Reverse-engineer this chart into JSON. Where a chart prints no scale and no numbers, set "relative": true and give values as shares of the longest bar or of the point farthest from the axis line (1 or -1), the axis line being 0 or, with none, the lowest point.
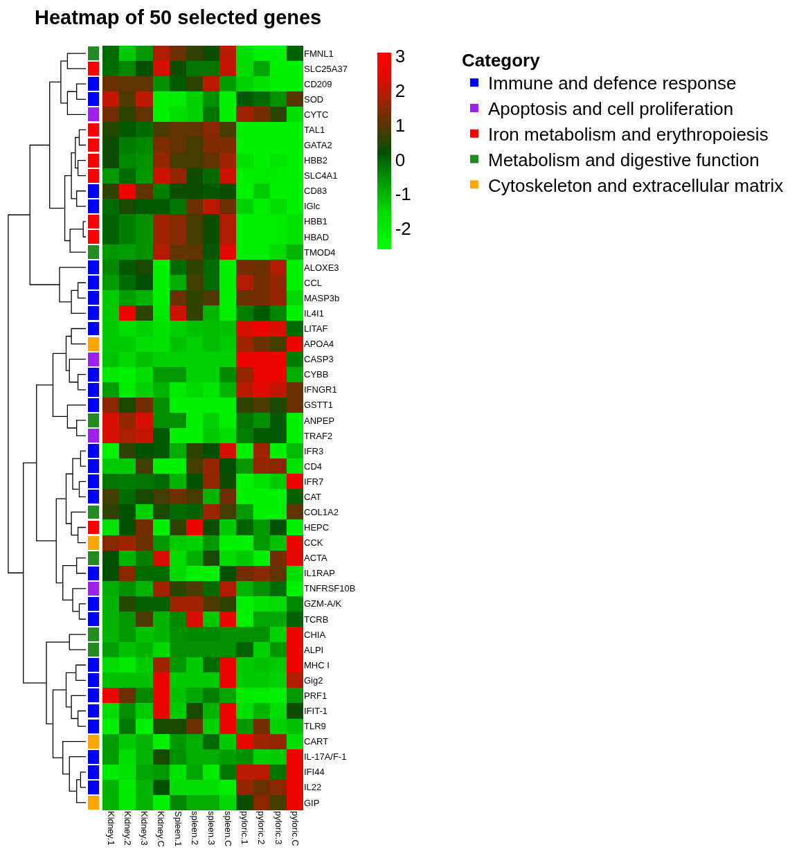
{
  "chart_data": [
    {
      "type": "heatmap",
      "title": "Heatmap of 50 selected genes",
      "categories": [
        "Kidney.1",
        "Kidney.2",
        "Kidney.3",
        "Kidney.C",
        "Spleen.1",
        "spleen.2",
        "spleen.3",
        "spleen.C",
        "pyloric.1",
        "pyloric.2",
        "pyloric.3",
        "pyloric.C"
      ],
      "y_categories": [
        "FMNL1",
        "SLC25A37",
        "CD209",
        "SOD",
        "CYTC",
        "TAL1",
        "GATA2",
        "HBB2",
        "SLC4A1",
        "CD83",
        "IGlc",
        "HBB1",
        "HBAD",
        "TMOD4",
        "ALOXE3",
        "CCL",
        "MASP3b",
        "IL4I1",
        "LITAF",
        "APOA4",
        "CASP3",
        "CYBB",
        "IFNGR1",
        "GSTT1",
        "ANPEP",
        "TRAF2",
        "IFR3",
        "CD4",
        "IFR7",
        "CAT",
        "COL1A2",
        "HEPC",
        "CCK",
        "ACTA",
        "IL1RAP",
        "TNFRSF10B",
        "GZM-A/K",
        "TCRB",
        "CHIA",
        "ALPI",
        "MHC I",
        "Gig2",
        "PRF1",
        "IFIT-1",
        "TLR9",
        "CART",
        "IL-17A/F-1",
        "IFI44",
        "IL22",
        "GIP"
      ],
      "cells": [
        [
          -0.1,
          -1.3,
          -0.6,
          1.9,
          1.2,
          0.6,
          0.3,
          2.0,
          -1.7,
          -2.2,
          -2.2,
          0.0
        ],
        [
          -0.1,
          -0.4,
          0.2,
          2.3,
          0.3,
          -0.2,
          -0.2,
          2.1,
          -1.6,
          -0.8,
          -2.2,
          -2.2
        ],
        [
          1.2,
          1.1,
          1.1,
          -0.5,
          0.1,
          0.6,
          2.0,
          -0.7,
          -1.4,
          -1.8,
          -2.1,
          -2.2
        ],
        [
          2.1,
          0.9,
          2.0,
          -2.2,
          -2.1,
          -1.4,
          -0.5,
          -2.2,
          0.1,
          -0.1,
          -0.5,
          1.0
        ],
        [
          1.3,
          0.6,
          1.1,
          -2.2,
          -1.7,
          -1.4,
          -0.2,
          -2.2,
          1.7,
          1.3,
          0.6,
          -1.7
        ],
        [
          0.5,
          0.1,
          -0.1,
          0.9,
          1.1,
          1.1,
          1.5,
          0.8,
          -2.1,
          -2.2,
          -2.2,
          -2.2
        ],
        [
          0.3,
          -0.3,
          -0.4,
          1.4,
          1.1,
          0.8,
          1.4,
          1.4,
          -2.2,
          -2.2,
          -2.2,
          -2.2
        ],
        [
          0.3,
          -0.4,
          -0.5,
          1.6,
          0.8,
          0.8,
          1.1,
          1.7,
          -1.8,
          -2.2,
          -1.9,
          -2.2
        ],
        [
          -0.6,
          -0.1,
          -0.6,
          2.2,
          1.6,
          0.3,
          -0.1,
          2.2,
          -2.2,
          -2.0,
          -2.1,
          -2.2
        ],
        [
          0.6,
          2.8,
          1.1,
          -0.3,
          0.3,
          0.3,
          0.1,
          0.3,
          -2.2,
          -1.3,
          -2.2,
          -2.2
        ],
        [
          -0.1,
          0.4,
          0.1,
          0.1,
          -0.2,
          1.2,
          2.0,
          1.2,
          -1.4,
          -2.2,
          -1.6,
          -2.2
        ],
        [
          0.0,
          -0.3,
          -0.5,
          1.7,
          1.5,
          0.8,
          0.3,
          1.9,
          -2.2,
          -2.1,
          -2.1,
          -1.8
        ],
        [
          0.0,
          -0.3,
          -0.5,
          1.7,
          1.5,
          0.8,
          0.3,
          1.9,
          -2.2,
          -2.1,
          -2.1,
          -1.8
        ],
        [
          -0.6,
          -0.7,
          -0.5,
          1.9,
          1.1,
          1.1,
          0.1,
          2.4,
          -2.2,
          -2.2,
          -1.6,
          -1.0
        ],
        [
          -0.4,
          0.1,
          0.4,
          -2.2,
          -0.1,
          0.6,
          -0.1,
          -2.2,
          1.3,
          1.2,
          1.9,
          -2.2
        ],
        [
          -0.7,
          -0.1,
          0.2,
          -2.2,
          -0.9,
          0.8,
          -0.1,
          -2.2,
          1.9,
          1.3,
          1.6,
          -2.2
        ],
        [
          -1.3,
          -0.7,
          -1.0,
          -2.2,
          1.2,
          0.6,
          0.9,
          -2.2,
          1.2,
          1.3,
          1.6,
          -1.5
        ],
        [
          -1.3,
          2.7,
          0.6,
          -2.0,
          2.2,
          0.6,
          -1.0,
          -2.1,
          -0.3,
          0.1,
          -0.4,
          -2.2
        ],
        [
          -1.3,
          -1.7,
          -1.4,
          -1.8,
          -1.4,
          -1.2,
          -1.1,
          -1.2,
          2.3,
          2.7,
          2.3,
          -0.1
        ],
        [
          -1.3,
          -1.3,
          -1.7,
          -1.8,
          -1.2,
          -1.4,
          -1.1,
          -1.3,
          1.7,
          1.2,
          0.8,
          2.7
        ],
        [
          -1.2,
          -1.5,
          -1.2,
          -1.4,
          -1.4,
          -1.4,
          -1.4,
          -1.4,
          2.7,
          2.7,
          2.7,
          -0.3
        ],
        [
          -2.0,
          -2.2,
          -1.7,
          -0.6,
          -0.6,
          -1.4,
          -1.4,
          -0.4,
          1.6,
          2.7,
          2.7,
          -0.9
        ],
        [
          -0.7,
          -2.0,
          -1.4,
          -1.0,
          -2.0,
          -1.5,
          -1.9,
          -1.0,
          2.0,
          2.4,
          2.1,
          1.2
        ],
        [
          1.5,
          0.4,
          1.3,
          -0.5,
          -2.2,
          -2.2,
          -2.2,
          -2.2,
          0.6,
          0.9,
          0.4,
          1.2
        ],
        [
          2.3,
          1.6,
          2.3,
          -0.5,
          -0.5,
          -2.2,
          -1.4,
          -2.2,
          -0.2,
          -0.5,
          0.1,
          -2.2
        ],
        [
          2.3,
          1.8,
          2.1,
          0.1,
          -2.2,
          -2.2,
          -1.3,
          -1.7,
          -0.3,
          0.1,
          0.1,
          -2.2
        ],
        [
          -2.2,
          0.6,
          0.2,
          0.1,
          -0.9,
          0.6,
          0.2,
          2.3,
          -2.2,
          1.7,
          -2.2,
          -1.1
        ],
        [
          -1.3,
          -1.3,
          0.8,
          -2.2,
          -2.2,
          0.8,
          1.6,
          0.2,
          -0.6,
          1.6,
          1.5,
          -1.8
        ],
        [
          -0.2,
          -0.3,
          -0.2,
          -0.1,
          -1.0,
          0.2,
          1.6,
          0.3,
          -2.2,
          -1.8,
          -1.3,
          2.7
        ],
        [
          0.8,
          -0.1,
          0.4,
          0.8,
          1.2,
          0.8,
          -1.0,
          1.3,
          -2.2,
          -2.2,
          -2.2,
          0.0
        ],
        [
          0.6,
          0.2,
          -1.4,
          0.4,
          -0.1,
          0.0,
          1.7,
          0.8,
          -0.6,
          -2.2,
          -2.2,
          1.1
        ],
        [
          -1.8,
          0.2,
          1.3,
          -2.2,
          0.6,
          2.7,
          0.3,
          -1.3,
          0.0,
          -0.6,
          0.2,
          -2.1
        ],
        [
          1.5,
          1.7,
          1.2,
          -0.6,
          -1.3,
          -1.4,
          -0.6,
          -2.2,
          -2.2,
          -0.6,
          -1.2,
          2.6
        ],
        [
          0.2,
          -1.0,
          -0.3,
          2.3,
          -1.6,
          -0.9,
          0.4,
          -1.6,
          -1.3,
          -2.2,
          1.3,
          2.4
        ],
        [
          0.2,
          1.5,
          -0.1,
          -0.1,
          -1.5,
          -2.2,
          -2.2,
          0.2,
          1.3,
          1.5,
          1.1,
          -1.7
        ],
        [
          -0.9,
          -0.5,
          -1.0,
          1.7,
          0.6,
          0.9,
          -0.1,
          1.9,
          -1.0,
          -0.5,
          -0.1,
          -2.2
        ],
        [
          -1.0,
          0.5,
          0.0,
          0.0,
          1.7,
          1.7,
          0.9,
          0.6,
          -2.2,
          -1.8,
          -1.6,
          -0.4
        ],
        [
          -1.0,
          -0.6,
          0.9,
          -1.0,
          -0.4,
          2.3,
          -1.3,
          2.6,
          -2.2,
          -0.8,
          -0.8,
          0.0
        ],
        [
          -1.0,
          -0.6,
          -1.2,
          -1.0,
          -0.5,
          -0.4,
          -0.4,
          -0.5,
          -0.5,
          -0.5,
          -1.4,
          2.7
        ],
        [
          -0.7,
          -1.2,
          -1.0,
          -1.5,
          -0.5,
          -0.5,
          -0.5,
          -0.5,
          0.0,
          -1.4,
          -0.6,
          2.7
        ],
        [
          -1.6,
          -2.0,
          -1.3,
          1.7,
          -0.6,
          -1.3,
          -0.1,
          2.6,
          -1.3,
          -1.2,
          -1.3,
          2.7
        ],
        [
          -1.2,
          -1.2,
          -1.2,
          2.7,
          -1.3,
          -1.3,
          -1.3,
          2.7,
          -1.3,
          -1.3,
          -1.4,
          1.9
        ],
        [
          2.7,
          1.2,
          -0.4,
          2.7,
          -1.2,
          -0.8,
          -0.3,
          -0.8,
          -2.0,
          -2.1,
          -2.2,
          -0.6
        ],
        [
          -1.6,
          -0.5,
          -1.3,
          2.7,
          -1.3,
          0.4,
          -1.0,
          2.7,
          -1.7,
          -1.0,
          -1.6,
          0.3
        ],
        [
          -2.2,
          -0.2,
          -2.2,
          0.4,
          0.4,
          1.2,
          -1.4,
          2.7,
          -0.6,
          1.3,
          -1.4,
          -1.2
        ],
        [
          -0.7,
          -1.3,
          -1.0,
          -2.2,
          -0.6,
          -0.9,
          -0.1,
          -1.3,
          2.7,
          1.7,
          1.6,
          -1.6
        ],
        [
          -0.7,
          -1.6,
          -1.0,
          0.4,
          -0.5,
          -0.9,
          -0.9,
          -0.7,
          -0.5,
          -1.4,
          -1.3,
          2.7
        ],
        [
          -2.0,
          -1.8,
          -0.8,
          -0.6,
          -1.8,
          -0.8,
          -2.0,
          -0.2,
          2.0,
          2.0,
          -0.2,
          2.7
        ],
        [
          -1.0,
          -2.0,
          -1.0,
          0.2,
          -1.6,
          -1.7,
          -1.7,
          -2.1,
          1.6,
          1.2,
          1.5,
          2.7
        ],
        [
          -1.0,
          -2.0,
          -1.0,
          -2.2,
          -0.4,
          -0.9,
          -0.9,
          -1.5,
          0.3,
          1.5,
          0.8,
          2.7
        ]
      ],
      "clim": [
        -2.6,
        3.1
      ],
      "cticks": [
        -2,
        -1,
        0,
        1,
        2,
        3
      ]
    },
    {
      "type": "bar",
      "orientation": "horizontal",
      "relative": true,
      "stacked": true,
      "categories": [
        null,
        null,
        null,
        null,
        null,
        null,
        null,
        null,
        null,
        null,
        null,
        null,
        null,
        null,
        null,
        null,
        null,
        null,
        null,
        null,
        null,
        null,
        null,
        null,
        null,
        null,
        null,
        null,
        null,
        null,
        null,
        null,
        null,
        null,
        null,
        null,
        null,
        null,
        null,
        null,
        null,
        null,
        null,
        null,
        null,
        null,
        null,
        null,
        null,
        null
      ],
      "legend_title": "Category",
      "legend": "right",
      "series": [
        {
          "name": "Immune and defence response",
          "color": "#0000ff",
          "values": [
            null,
            null,
            1,
            1,
            null,
            null,
            null,
            null,
            null,
            1,
            1,
            null,
            null,
            null,
            1,
            1,
            1,
            1,
            1,
            null,
            null,
            1,
            1,
            1,
            null,
            null,
            1,
            1,
            1,
            1,
            null,
            null,
            null,
            null,
            1,
            null,
            1,
            1,
            null,
            null,
            1,
            1,
            1,
            1,
            1,
            null,
            1,
            1,
            1,
            null
          ]
        },
        {
          "name": "Apoptosis and cell proliferation",
          "color": "#a020f0",
          "values": [
            null,
            null,
            null,
            null,
            1,
            null,
            null,
            null,
            null,
            null,
            null,
            null,
            null,
            null,
            null,
            null,
            null,
            null,
            null,
            null,
            1,
            null,
            null,
            null,
            null,
            1,
            null,
            null,
            null,
            null,
            null,
            null,
            null,
            null,
            null,
            1,
            null,
            null,
            null,
            null,
            null,
            null,
            null,
            null,
            null,
            null,
            null,
            null,
            null,
            null
          ]
        },
        {
          "name": "Iron metabolism and erythropoiesis",
          "color": "#ff0000",
          "values": [
            null,
            1,
            null,
            null,
            null,
            1,
            1,
            1,
            1,
            null,
            null,
            1,
            1,
            null,
            null,
            null,
            null,
            null,
            null,
            null,
            null,
            null,
            null,
            null,
            null,
            null,
            null,
            null,
            null,
            null,
            null,
            1,
            null,
            null,
            null,
            null,
            null,
            null,
            null,
            null,
            null,
            null,
            null,
            null,
            null,
            null,
            null,
            null,
            null,
            null
          ]
        },
        {
          "name": "Metabolism and digestive function",
          "color": "#228b22",
          "values": [
            1,
            null,
            null,
            null,
            null,
            null,
            null,
            null,
            null,
            null,
            null,
            null,
            null,
            1,
            null,
            null,
            null,
            null,
            null,
            null,
            null,
            null,
            null,
            null,
            1,
            null,
            null,
            null,
            null,
            null,
            1,
            null,
            null,
            1,
            null,
            null,
            null,
            null,
            1,
            1,
            null,
            null,
            null,
            null,
            null,
            null,
            null,
            null,
            null,
            null
          ]
        },
        {
          "name": "Cytoskeleton and extracellular matrix",
          "color": "#ffa500",
          "values": [
            null,
            null,
            null,
            null,
            null,
            null,
            null,
            null,
            null,
            null,
            null,
            null,
            null,
            null,
            null,
            null,
            null,
            null,
            null,
            1,
            null,
            null,
            null,
            null,
            null,
            null,
            null,
            null,
            null,
            null,
            null,
            null,
            1,
            null,
            null,
            null,
            null,
            null,
            null,
            null,
            null,
            null,
            null,
            null,
            null,
            1,
            null,
            null,
            null,
            1
          ]
        }
      ]
    }
  ]
}
